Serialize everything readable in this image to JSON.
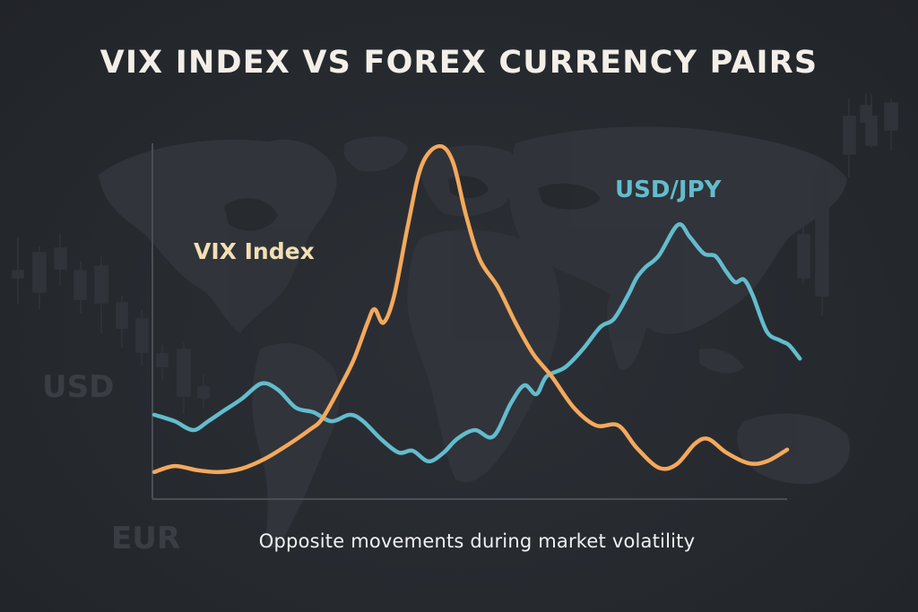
{
  "title": "VIX INDEX VS FOREX CURRENCY PAIRS",
  "subtitle": "Opposite movements during market volatility",
  "labels": {
    "vix": "VIX Index",
    "usdjpy": "USD/JPY"
  },
  "background_text": {
    "usd": "USD",
    "eur": "EUR"
  },
  "colors": {
    "background": "#25292e",
    "vix_line": "#f4a95c",
    "usdjpy_line": "#63bccd",
    "axis": "#4a4e55",
    "title": "#f3efe8",
    "vix_label": "#f2dfb4"
  },
  "chart_data": {
    "type": "line",
    "title": "VIX INDEX VS FOREX CURRENCY PAIRS",
    "subtitle": "Opposite movements during market volatility",
    "xlabel": "",
    "ylabel": "",
    "x_units": "relative position along time axis (0-100)",
    "y_units": "relative level (0 = bottom axis, 100 = top of plot), no tick labels shown",
    "ylim": [
      0,
      100
    ],
    "xlim": [
      0,
      100
    ],
    "grid": false,
    "legend": "inline labels (VIX Index upper-left, USD/JPY upper-right)",
    "annotations": [
      "Opposite movements during market volatility"
    ],
    "series": [
      {
        "name": "VIX Index",
        "color": "#f4a95c",
        "x": [
          0.3,
          3.5,
          7.1,
          10.6,
          14.1,
          17.7,
          21.2,
          24.7,
          26.8,
          29.7,
          31.8,
          33.9,
          35.0,
          36.4,
          38.1,
          40.3,
          42.4,
          45.1,
          47.3,
          49.4,
          51.6,
          54.4,
          57.2,
          60.0,
          62.9,
          66.4,
          69.9,
          73.4,
          76.3,
          79.8,
          82.6,
          85.5,
          87.6,
          90.4,
          93.9,
          96.8,
          100.0
        ],
        "values": [
          7.6,
          9.3,
          8.1,
          7.6,
          8.6,
          11.3,
          15.1,
          19.4,
          22.7,
          32.0,
          39.5,
          49.6,
          53.4,
          49.6,
          57.2,
          77.3,
          93.7,
          99.2,
          95.0,
          79.8,
          67.3,
          59.7,
          49.6,
          40.8,
          34.5,
          25.7,
          20.7,
          20.7,
          14.4,
          8.8,
          9.8,
          15.6,
          16.9,
          13.1,
          10.1,
          10.6,
          13.9
        ]
      },
      {
        "name": "USD/JPY",
        "color": "#63bccd",
        "x": [
          0.3,
          3.5,
          6.4,
          8.8,
          11.3,
          14.1,
          17.2,
          19.8,
          22.6,
          25.4,
          28.2,
          31.1,
          33.2,
          36.0,
          38.8,
          41.0,
          43.5,
          45.9,
          48.0,
          50.8,
          53.7,
          56.5,
          58.6,
          60.5,
          62.1,
          65.0,
          67.8,
          70.6,
          72.7,
          74.9,
          76.3,
          77.7,
          79.8,
          82.8,
          84.7,
          86.9,
          88.7,
          90.4,
          91.8,
          93.2,
          94.6,
          96.8,
          98.9,
          100.3,
          102.0
        ],
        "values": [
          23.7,
          21.9,
          19.4,
          21.9,
          24.9,
          28.2,
          32.5,
          30.7,
          25.7,
          24.4,
          21.9,
          23.7,
          21.9,
          16.9,
          13.1,
          13.6,
          10.6,
          13.1,
          16.9,
          19.4,
          17.6,
          27.0,
          32.0,
          29.5,
          34.5,
          37.0,
          42.1,
          48.4,
          50.6,
          57.2,
          62.2,
          65.2,
          68.5,
          77.1,
          73.6,
          69.0,
          68.3,
          64.0,
          61.0,
          61.7,
          57.2,
          47.1,
          44.6,
          43.3,
          39.5
        ]
      }
    ]
  }
}
